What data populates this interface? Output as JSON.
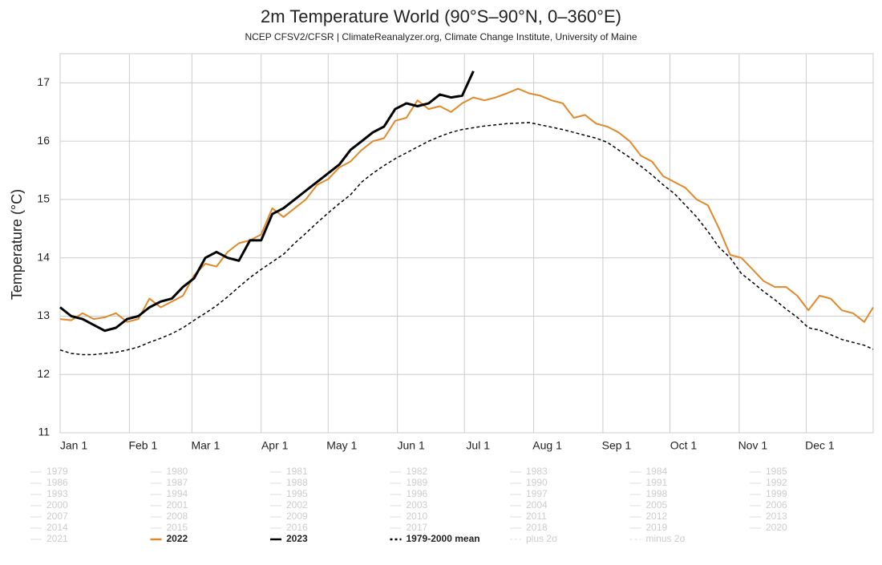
{
  "chart_data": {
    "type": "line",
    "title": "2m Temperature World (90°S–90°N, 0–360°E)",
    "subtitle": "NCEP CFSV2/CFSR | ClimateReanalyzer.org, Climate Change Institute, University of Maine",
    "y_label": "Temperature (°C)",
    "xlim": [
      0,
      364
    ],
    "xticks": [
      {
        "value": 0,
        "label": "Jan 1"
      },
      {
        "value": 31,
        "label": "Feb 1"
      },
      {
        "value": 59,
        "label": "Mar 1"
      },
      {
        "value": 90,
        "label": "Apr 1"
      },
      {
        "value": 120,
        "label": "May 1"
      },
      {
        "value": 151,
        "label": "Jun 1"
      },
      {
        "value": 181,
        "label": "Jul 1"
      },
      {
        "value": 212,
        "label": "Aug 1"
      },
      {
        "value": 243,
        "label": "Sep 1"
      },
      {
        "value": 273,
        "label": "Oct 1"
      },
      {
        "value": 304,
        "label": "Nov 1"
      },
      {
        "value": 334,
        "label": "Dec 1"
      }
    ],
    "ylim": [
      11,
      17.5
    ],
    "yticks": [
      11,
      12,
      13,
      14,
      15,
      16,
      17
    ],
    "grid": true,
    "x": [
      0,
      5,
      10,
      15,
      20,
      25,
      30,
      35,
      40,
      45,
      50,
      55,
      60,
      65,
      70,
      75,
      80,
      85,
      90,
      95,
      100,
      105,
      110,
      115,
      120,
      125,
      130,
      135,
      140,
      145,
      150,
      155,
      160,
      165,
      170,
      175,
      180,
      185,
      190,
      195,
      200,
      205,
      210,
      215,
      220,
      225,
      230,
      235,
      240,
      245,
      250,
      255,
      260,
      265,
      270,
      275,
      280,
      285,
      290,
      295,
      300,
      305,
      310,
      315,
      320,
      325,
      330,
      335,
      340,
      345,
      350,
      355,
      360,
      364
    ],
    "series": [
      {
        "name": "2022",
        "color": "#e0892a",
        "width": 2,
        "dashed": false,
        "values": [
          12.95,
          12.93,
          13.05,
          12.95,
          12.98,
          13.05,
          12.9,
          12.95,
          13.3,
          13.15,
          13.25,
          13.35,
          13.7,
          13.9,
          13.85,
          14.1,
          14.25,
          14.3,
          14.4,
          14.85,
          14.7,
          14.85,
          15.0,
          15.25,
          15.35,
          15.55,
          15.65,
          15.85,
          16.0,
          16.05,
          16.35,
          16.4,
          16.7,
          16.55,
          16.6,
          16.5,
          16.65,
          16.75,
          16.7,
          16.75,
          16.82,
          16.9,
          16.82,
          16.78,
          16.7,
          16.65,
          16.4,
          16.45,
          16.3,
          16.25,
          16.15,
          16.0,
          15.75,
          15.65,
          15.4,
          15.3,
          15.2,
          15.0,
          14.9,
          14.5,
          14.05,
          14.0,
          13.8,
          13.6,
          13.5,
          13.5,
          13.35,
          13.1,
          13.35,
          13.3,
          13.1,
          13.05,
          12.9,
          13.15
        ]
      },
      {
        "name": "2023",
        "color": "#000000",
        "width": 3,
        "dashed": false,
        "values": [
          13.15,
          13.0,
          12.95,
          12.85,
          12.75,
          12.8,
          12.95,
          13.0,
          13.15,
          13.25,
          13.3,
          13.5,
          13.65,
          14.0,
          14.1,
          14.0,
          13.95,
          14.3,
          14.3,
          14.75,
          14.85,
          15.0,
          15.15,
          15.3,
          15.45,
          15.6,
          15.85,
          16.0,
          16.15,
          16.25,
          16.55,
          16.65,
          16.6,
          16.65,
          16.8,
          16.75,
          16.78,
          17.2,
          null,
          null,
          null,
          null,
          null,
          null,
          null,
          null,
          null,
          null,
          null,
          null,
          null,
          null,
          null,
          null,
          null,
          null,
          null,
          null,
          null,
          null,
          null,
          null,
          null,
          null,
          null,
          null,
          null,
          null,
          null,
          null,
          null,
          null,
          null,
          null
        ]
      },
      {
        "name": "1979-2000 mean",
        "color": "#000000",
        "width": 1.5,
        "dashed": true,
        "values": [
          12.42,
          12.36,
          12.34,
          12.34,
          12.36,
          12.38,
          12.42,
          12.47,
          12.55,
          12.62,
          12.7,
          12.8,
          12.93,
          13.05,
          13.18,
          13.33,
          13.5,
          13.66,
          13.8,
          13.93,
          14.06,
          14.25,
          14.42,
          14.6,
          14.77,
          14.93,
          15.08,
          15.3,
          15.45,
          15.58,
          15.7,
          15.8,
          15.9,
          16.0,
          16.08,
          16.15,
          16.2,
          16.23,
          16.26,
          16.28,
          16.3,
          16.31,
          16.32,
          16.28,
          16.24,
          16.2,
          16.15,
          16.1,
          16.05,
          15.98,
          15.85,
          15.72,
          15.57,
          15.42,
          15.25,
          15.1,
          14.9,
          14.7,
          14.45,
          14.18,
          14.0,
          13.73,
          13.58,
          13.42,
          13.28,
          13.12,
          12.98,
          12.8,
          12.76,
          12.68,
          12.6,
          12.55,
          12.5,
          12.43
        ]
      }
    ],
    "hidden_series": [
      "1979",
      "1980",
      "1981",
      "1982",
      "1983",
      "1984",
      "1985",
      "1986",
      "1987",
      "1988",
      "1989",
      "1990",
      "1991",
      "1992",
      "1993",
      "1994",
      "1995",
      "1996",
      "1997",
      "1998",
      "1999",
      "2000",
      "2001",
      "2002",
      "2003",
      "2004",
      "2005",
      "2006",
      "2007",
      "2008",
      "2009",
      "2010",
      "2011",
      "2012",
      "2013",
      "2014",
      "2015",
      "2016",
      "2017",
      "2018",
      "2019",
      "2020",
      "2021"
    ],
    "hidden_bands": [
      "plus 2σ",
      "minus 2σ"
    ]
  }
}
